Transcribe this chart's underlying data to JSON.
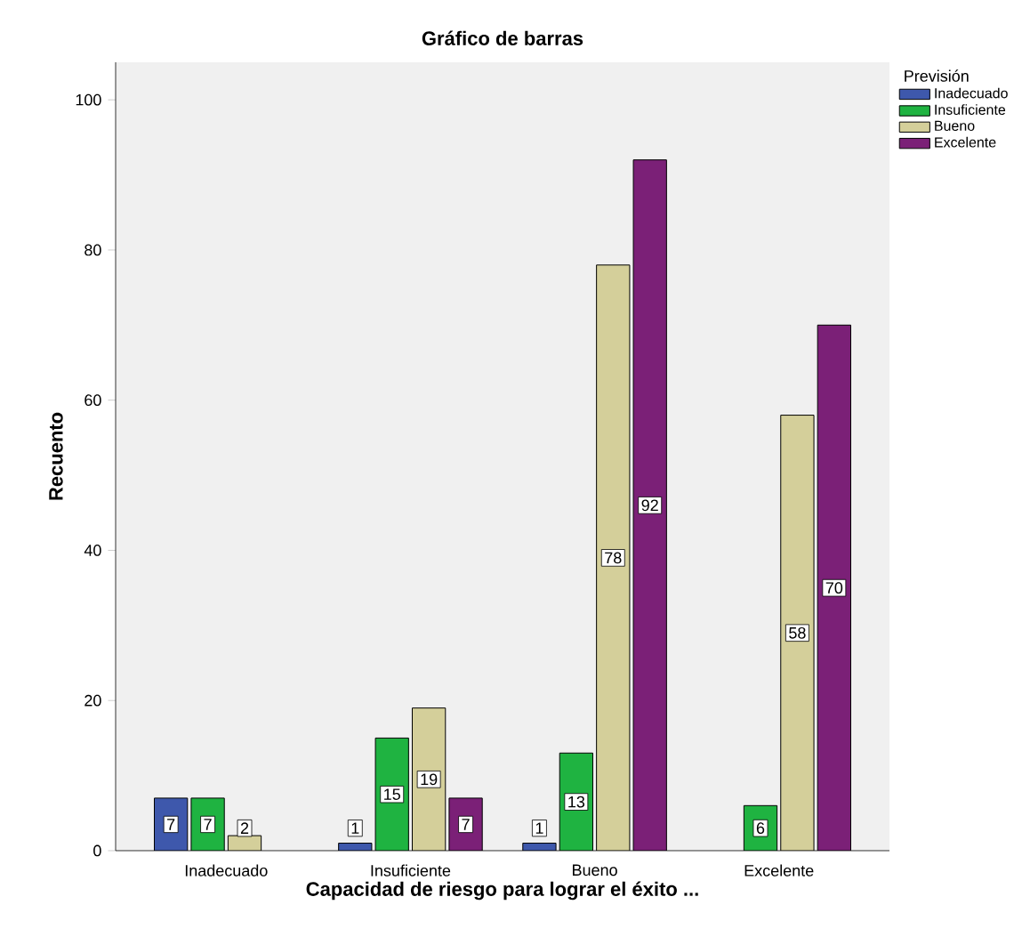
{
  "chart_data": {
    "type": "bar",
    "title": "Gráfico de barras",
    "xlabel": "Capacidad de riesgo para lograr el éxito ...",
    "ylabel": "Recuento",
    "legend_title": "Previsión",
    "categories": [
      "Inadecuado",
      "Insuficiente",
      "Bueno",
      "Excelente"
    ],
    "series": [
      {
        "name": "Inadecuado",
        "color": "#3e58ac",
        "values": [
          7,
          1,
          1,
          null
        ]
      },
      {
        "name": "Insuficiente",
        "color": "#1fb341",
        "values": [
          7,
          15,
          13,
          6
        ]
      },
      {
        "name": "Bueno",
        "color": "#d4cf9a",
        "values": [
          2,
          19,
          78,
          58
        ]
      },
      {
        "name": "Excelente",
        "color": "#7b2077",
        "values": [
          null,
          7,
          92,
          70
        ]
      }
    ],
    "ylim": [
      0,
      105
    ],
    "yticks": [
      0,
      20,
      40,
      60,
      80,
      100
    ],
    "data_labels": true,
    "legend": "top right",
    "grid": false
  }
}
